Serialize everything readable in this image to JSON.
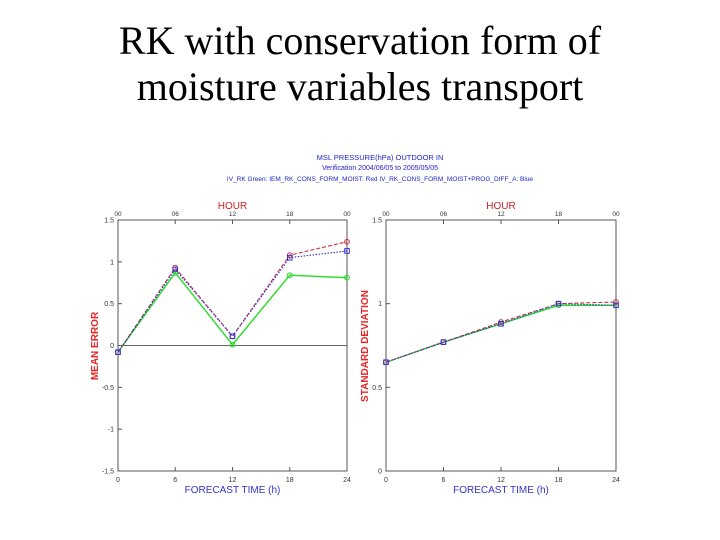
{
  "slide": {
    "title_line1": "RK with conservation form of",
    "title_line2": "moisture variables transport"
  },
  "header": {
    "line1": "MSL PRESSURE(hPa) OUTDOOR IN",
    "line2": "Verification 2004/06/05 to 2005/05/05",
    "line3": "IV_RK Green: IEM_RK_CONS_FORM_MOIST: Red   IV_RK_CONS_FORM_MOIST+PROG_DIFF_A: Blue"
  },
  "colors": {
    "green": "#22dd22",
    "red": "#cc3344",
    "blue": "#3333cc",
    "axis_label": "#ee2222",
    "top_label": "#cc2222",
    "header": "#2222cc"
  },
  "chart_data": [
    {
      "type": "line",
      "xlabel": "FORECAST TIME (h)",
      "ylabel": "MEAN ERROR",
      "top_axis_label": "HOUR",
      "x": [
        0,
        6,
        12,
        18,
        24
      ],
      "xticks": [
        "0",
        "6",
        "12",
        "18",
        "24"
      ],
      "top_ticks": [
        "00",
        "06",
        "12",
        "18",
        "00"
      ],
      "ylim": [
        -1.5,
        1.5
      ],
      "yticks": [
        "-1.5",
        "-1",
        "-0.5",
        "0",
        "0.5",
        "1",
        "1.5"
      ],
      "zero_line": true,
      "series": [
        {
          "color": "green",
          "marker": "o",
          "values": [
            -0.08,
            0.87,
            0.01,
            0.84,
            0.81
          ]
        },
        {
          "color": "red",
          "marker": "o",
          "values": [
            -0.08,
            0.93,
            0.11,
            1.08,
            1.24
          ]
        },
        {
          "color": "blue",
          "marker": "s",
          "values": [
            -0.08,
            0.91,
            0.11,
            1.05,
            1.13
          ]
        }
      ]
    },
    {
      "type": "line",
      "xlabel": "FORECAST TIME (h)",
      "ylabel": "STANDARD DEVIATION",
      "top_axis_label": "HOUR",
      "x": [
        0,
        6,
        12,
        18,
        24
      ],
      "xticks": [
        "0",
        "6",
        "12",
        "18",
        "24"
      ],
      "top_ticks": [
        "00",
        "06",
        "12",
        "18",
        "00"
      ],
      "ylim": [
        0,
        1.5
      ],
      "yticks": [
        "0",
        "0.5",
        "1",
        "1.5"
      ],
      "series": [
        {
          "color": "green",
          "marker": "o",
          "values": [
            0.65,
            0.77,
            0.88,
            0.99,
            0.99
          ]
        },
        {
          "color": "red",
          "marker": "o",
          "values": [
            0.65,
            0.77,
            0.89,
            1.0,
            1.01
          ]
        },
        {
          "color": "blue",
          "marker": "s",
          "values": [
            0.65,
            0.77,
            0.88,
            1.0,
            0.99
          ]
        }
      ]
    }
  ]
}
